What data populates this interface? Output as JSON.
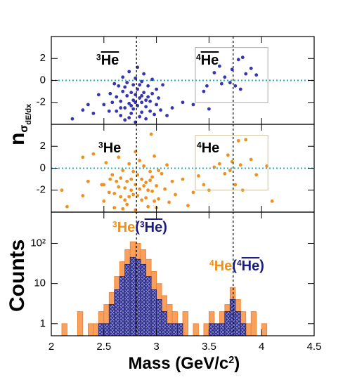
{
  "chart_data": [
    {
      "type": "scatter",
      "ylabel": {
        "text": "n",
        "sub": "σ",
        "subsub": "dE/dx"
      },
      "xlim": [
        2,
        4.5
      ],
      "xticks": [
        2,
        2.5,
        3,
        3.5,
        4,
        4.5
      ],
      "xticklabels": false,
      "ylim": [
        -4,
        4
      ],
      "yticks": [
        -2,
        0,
        2
      ],
      "hline": 0,
      "hline_color": "#20b0b8",
      "vlines": [
        2.81,
        3.73
      ],
      "box": {
        "x": [
          3.37,
          4.06
        ],
        "y": [
          -2,
          3
        ],
        "color": "#aaaaaa"
      },
      "annotations": [
        {
          "parts": [
            {
              "sup": "3",
              "text": "He",
              "anti": true,
              "color": "#000000"
            }
          ]
        },
        {
          "parts": [
            {
              "sup": "4",
              "text": "He",
              "anti": true,
              "color": "#000000"
            }
          ]
        }
      ],
      "series": [
        {
          "color": "#3535b5",
          "x": [
            2.62,
            2.62,
            2.64,
            2.66,
            2.66,
            2.68,
            2.68,
            2.7,
            2.7,
            2.72,
            2.72,
            2.74,
            2.74,
            2.76,
            2.76,
            2.78,
            2.78,
            2.78,
            2.8,
            2.8,
            2.8,
            2.82,
            2.82,
            2.82,
            2.84,
            2.84,
            2.86,
            2.86,
            2.86,
            2.88,
            2.88,
            2.9,
            2.9,
            2.92,
            2.92,
            2.94,
            2.94,
            2.96,
            2.96,
            2.98,
            3.0,
            3.0,
            3.02,
            3.04,
            2.6,
            2.58,
            2.56,
            3.06,
            2.84,
            2.76,
            2.7,
            2.9,
            2.8,
            2.74,
            2.86,
            2.66,
            2.3,
            2.35,
            2.4,
            2.45,
            2.5,
            2.55,
            3.15,
            3.25,
            3.35,
            3.45,
            3.5,
            3.55,
            3.6,
            3.62,
            3.65,
            3.7,
            3.72,
            3.75,
            3.78,
            3.8,
            3.82,
            3.85,
            3.9,
            3.95,
            3.48,
            3.1,
            2.2
          ],
          "y": [
            -1.5,
            -2.8,
            -0.5,
            -3.2,
            -1.9,
            -1.0,
            0.3,
            -2.5,
            -3.6,
            -1.4,
            -0.2,
            -2.1,
            0.8,
            -3.0,
            -1.1,
            -0.4,
            -2.6,
            -1.8,
            -3.8,
            0.2,
            -1.3,
            -2.3,
            -0.8,
            1.2,
            -3.3,
            -1.6,
            -0.1,
            -2.0,
            -2.9,
            -1.1,
            0.6,
            -2.4,
            -3.5,
            -1.5,
            -0.5,
            -2.8,
            -1.9,
            0.1,
            -1.2,
            -3.1,
            -2.2,
            -0.8,
            -1.6,
            -2.7,
            -0.3,
            -2.0,
            -1.2,
            -0.4,
            -0.4,
            -2.3,
            -0.6,
            -1.8,
            -2.0,
            -3.4,
            -1.4,
            -2.5,
            -2.7,
            -2.2,
            -3.0,
            -1.3,
            -2.2,
            -2.8,
            -2.5,
            -2.0,
            -2.2,
            -1.0,
            -2.6,
            0.7,
            1.3,
            -0.3,
            0.3,
            -0.2,
            1.0,
            -0.5,
            1.9,
            -0.8,
            2.1,
            0.6,
            1.1,
            0.5,
            -0.5,
            -3.2,
            -3.5
          ]
        }
      ]
    },
    {
      "type": "scatter",
      "xlim": [
        2,
        4.5
      ],
      "xticks": [
        2,
        2.5,
        3,
        3.5,
        4,
        4.5
      ],
      "xticklabels": false,
      "ylim": [
        -4,
        4
      ],
      "yticks": [
        -2,
        0,
        2
      ],
      "hline": 0,
      "hline_color": "#20b0b8",
      "vlines": [
        2.81,
        3.73
      ],
      "box": {
        "x": [
          3.37,
          4.06
        ],
        "y": [
          -2,
          3
        ],
        "color": "#cfc39a"
      },
      "annotations": [
        {
          "parts": [
            {
              "sup": "3",
              "text": "He",
              "anti": false,
              "color": "#000000"
            }
          ]
        },
        {
          "parts": [
            {
              "sup": "4",
              "text": "He",
              "anti": false,
              "color": "#000000"
            }
          ]
        }
      ],
      "series": [
        {
          "color": "#f0901e",
          "x": [
            2.48,
            2.5,
            2.52,
            2.55,
            2.58,
            2.6,
            2.62,
            2.64,
            2.66,
            2.68,
            2.7,
            2.72,
            2.74,
            2.76,
            2.78,
            2.8,
            2.8,
            2.82,
            2.84,
            2.86,
            2.88,
            2.9,
            2.92,
            2.94,
            2.96,
            2.98,
            3.0,
            3.02,
            3.05,
            3.08,
            3.1,
            3.12,
            3.15,
            3.18,
            2.56,
            2.6,
            2.66,
            2.7,
            2.76,
            2.78,
            2.82,
            2.84,
            2.88,
            2.9,
            2.94,
            2.98,
            3.02,
            2.72,
            2.86,
            2.8,
            2.74,
            2.92,
            2.68,
            3.0,
            2.64,
            2.96,
            2.1,
            2.15,
            2.3,
            2.35,
            2.4,
            2.5,
            3.25,
            3.3,
            3.35,
            3.4,
            3.45,
            3.5,
            3.55,
            3.6,
            3.65,
            3.68,
            3.7,
            3.72,
            3.75,
            3.78,
            3.8,
            3.82,
            3.85,
            3.9,
            3.95,
            4.05,
            4.1,
            2.95,
            2.3
          ],
          "y": [
            -1.5,
            -3.0,
            0.5,
            -2.2,
            -0.6,
            -3.6,
            -1.2,
            1.0,
            -2.6,
            -0.2,
            -1.8,
            -3.3,
            0.4,
            -1.0,
            -2.4,
            1.5,
            -3.8,
            -0.6,
            -1.9,
            -2.9,
            0.2,
            -1.3,
            -3.5,
            -0.3,
            -2.1,
            1.1,
            -1.6,
            -2.8,
            -0.5,
            -1.9,
            0.3,
            -3.1,
            -1.2,
            -2.4,
            -1.0,
            -2.3,
            -0.9,
            -2.9,
            -2.0,
            -0.3,
            -2.5,
            0.7,
            -1.6,
            -2.7,
            -1.1,
            -3.0,
            -0.2,
            -1.2,
            -1.0,
            -1.5,
            -2.6,
            -2.0,
            -3.7,
            -3.6,
            -1.7,
            -0.8,
            -2.0,
            -3.5,
            -2.5,
            -1.2,
            1.3,
            -1.5,
            -1.0,
            -3.4,
            -2.2,
            -0.7,
            -1.5,
            -2.0,
            0.1,
            0.4,
            -0.5,
            1.2,
            -0.2,
            0.6,
            -1.5,
            2.5,
            0.3,
            -2.0,
            2.6,
            0.8,
            -0.6,
            0.2,
            -3.0,
            3.1,
            1.0
          ]
        }
      ]
    },
    {
      "type": "histogram",
      "ylabel": "Counts",
      "xlabel": {
        "text": "Mass (GeV/c",
        "sup": "2",
        "after": ")"
      },
      "xlim": [
        2,
        4.5
      ],
      "xticks": [
        2,
        2.5,
        3,
        3.5,
        4,
        4.5
      ],
      "xticklabels": true,
      "ylog": true,
      "ylim": [
        0.5,
        600
      ],
      "yticks": [
        1,
        10,
        {
          "value": 100,
          "label": "10²"
        }
      ],
      "vlines": [
        2.81,
        3.73
      ],
      "annotations": [
        {
          "parts": [
            {
              "sup": "3",
              "text": "He",
              "anti": false,
              "color": "#f0901e"
            },
            {
              "text": "(",
              "color": "#1c1c80"
            },
            {
              "sup": "3",
              "text": "He",
              "anti": true,
              "color": "#1c1c80"
            },
            {
              "text": ")",
              "color": "#1c1c80"
            }
          ]
        },
        {
          "parts": [
            {
              "sup": "4",
              "text": "He",
              "anti": false,
              "color": "#f0901e"
            },
            {
              "text": "(",
              "color": "#1c1c80"
            },
            {
              "sup": "4",
              "text": "He",
              "anti": true,
              "color": "#1c1c80"
            },
            {
              "text": ")",
              "color": "#1c1c80"
            }
          ]
        }
      ],
      "bins": [
        2,
        2.05,
        2.1,
        2.15,
        2.2,
        2.25,
        2.3,
        2.35,
        2.4,
        2.45,
        2.5,
        2.55,
        2.6,
        2.65,
        2.7,
        2.75,
        2.8,
        2.85,
        2.9,
        2.95,
        3,
        3.05,
        3.1,
        3.15,
        3.2,
        3.25,
        3.3,
        3.35,
        3.4,
        3.45,
        3.5,
        3.55,
        3.6,
        3.65,
        3.7,
        3.75,
        3.8,
        3.85,
        3.9,
        3.95,
        4,
        4.05,
        4.1
      ],
      "series": [
        {
          "color": "#f7a060",
          "edge": "#f08020",
          "hatch": false,
          "values": [
            0,
            0,
            1,
            0,
            0,
            2,
            0,
            1,
            1,
            2,
            3,
            6,
            15,
            35,
            70,
            110,
            100,
            70,
            40,
            20,
            10,
            5,
            3,
            2,
            1,
            2,
            0,
            1,
            0,
            1,
            2,
            1,
            2,
            3,
            8,
            4,
            2,
            1,
            2,
            0,
            1,
            0
          ]
        },
        {
          "color": "#2b2b8c",
          "edge": "#1c1c70",
          "hatch": true,
          "values": [
            0,
            0,
            0,
            0,
            0,
            0,
            0,
            0,
            0,
            1,
            1,
            3,
            7,
            15,
            30,
            45,
            40,
            30,
            15,
            7,
            4,
            2,
            1,
            1,
            1,
            0,
            0,
            0,
            0,
            0,
            1,
            1,
            1,
            2,
            4,
            2,
            1,
            0,
            0,
            0,
            0,
            0
          ]
        }
      ]
    }
  ]
}
